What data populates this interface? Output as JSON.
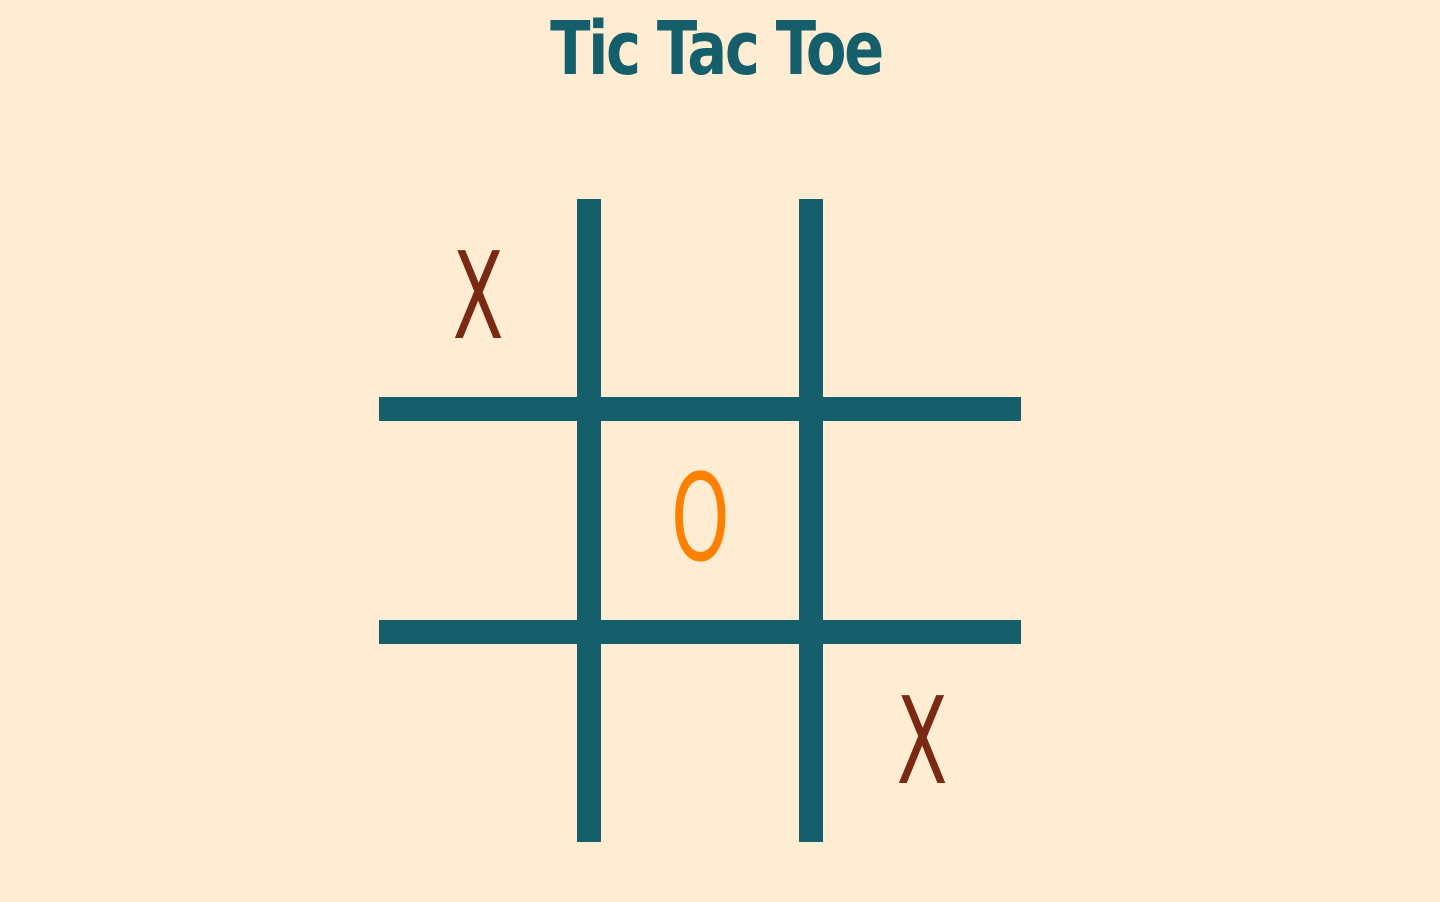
{
  "title": "Tic Tac Toe",
  "colors": {
    "background": "#ffedd3",
    "grid": "#155e6b",
    "x_mark": "#7a2a12",
    "o_mark": "#ff8000"
  },
  "board": {
    "cells": [
      "X",
      "",
      "",
      "",
      "O",
      "",
      "",
      "",
      "X"
    ]
  }
}
